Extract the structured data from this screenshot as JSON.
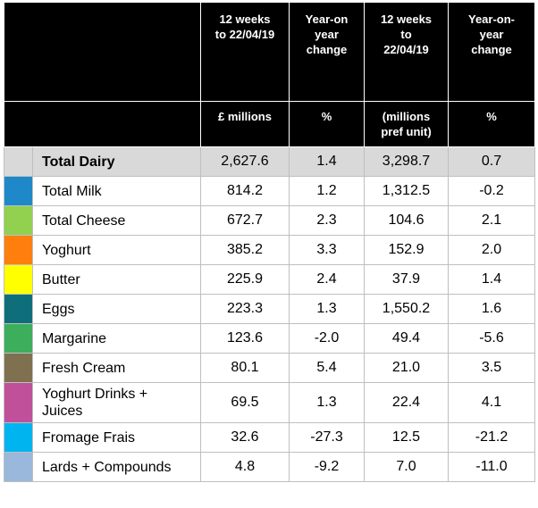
{
  "header": {
    "col1_line1": "12 weeks",
    "col1_line2": "to 22/04/19",
    "col1_unit": "£ millions",
    "col2_line1": "Year-on",
    "col2_line2": "year",
    "col2_line3": "change",
    "col2_unit": "%",
    "col3_line1": "12 weeks",
    "col3_line2": "to",
    "col3_line3": "22/04/19",
    "col3_unit_line1": "(millions",
    "col3_unit_line2": "pref unit)",
    "col4_line1": "Year-on-",
    "col4_line2": "year",
    "col4_line3": "change",
    "col4_unit": "%"
  },
  "rows": [
    {
      "label": "Total Dairy",
      "color": "#d9d9d9",
      "value_gbp": "2,627.6",
      "yoy_gbp": "1.4",
      "value_units": "3,298.7",
      "yoy_units": "0.7"
    },
    {
      "label": "Total Milk",
      "color": "#1f88c9",
      "value_gbp": "814.2",
      "yoy_gbp": "1.2",
      "value_units": "1,312.5",
      "yoy_units": "-0.2"
    },
    {
      "label": "Total Cheese",
      "color": "#92d050",
      "value_gbp": "672.7",
      "yoy_gbp": "2.3",
      "value_units": "104.6",
      "yoy_units": "2.1"
    },
    {
      "label": "Yoghurt",
      "color": "#ff7f0e",
      "value_gbp": "385.2",
      "yoy_gbp": "3.3",
      "value_units": "152.9",
      "yoy_units": "2.0"
    },
    {
      "label": "Butter",
      "color": "#ffff00",
      "value_gbp": "225.9",
      "yoy_gbp": "2.4",
      "value_units": "37.9",
      "yoy_units": "1.4"
    },
    {
      "label": "Eggs",
      "color": "#0e6f7a",
      "value_gbp": "223.3",
      "yoy_gbp": "1.3",
      "value_units": "1,550.2",
      "yoy_units": "1.6"
    },
    {
      "label": "Margarine",
      "color": "#3cae5c",
      "value_gbp": "123.6",
      "yoy_gbp": "-2.0",
      "value_units": "49.4",
      "yoy_units": "-5.6"
    },
    {
      "label": "Fresh Cream",
      "color": "#7f7150",
      "value_gbp": "80.1",
      "yoy_gbp": "5.4",
      "value_units": "21.0",
      "yoy_units": "3.5"
    },
    {
      "label_line1": "Yoghurt Drinks +",
      "label_line2": "Juices",
      "color": "#c0509a",
      "value_gbp": "69.5",
      "yoy_gbp": "1.3",
      "value_units": "22.4",
      "yoy_units": "4.1"
    },
    {
      "label": "Fromage Frais",
      "color": "#00b4f0",
      "value_gbp": "32.6",
      "yoy_gbp": "-27.3",
      "value_units": "12.5",
      "yoy_units": "-21.2"
    },
    {
      "label": "Lards + Compounds",
      "color": "#9ab7dc",
      "value_gbp": "4.8",
      "yoy_gbp": "-9.2",
      "value_units": "7.0",
      "yoy_units": "-11.0"
    }
  ]
}
